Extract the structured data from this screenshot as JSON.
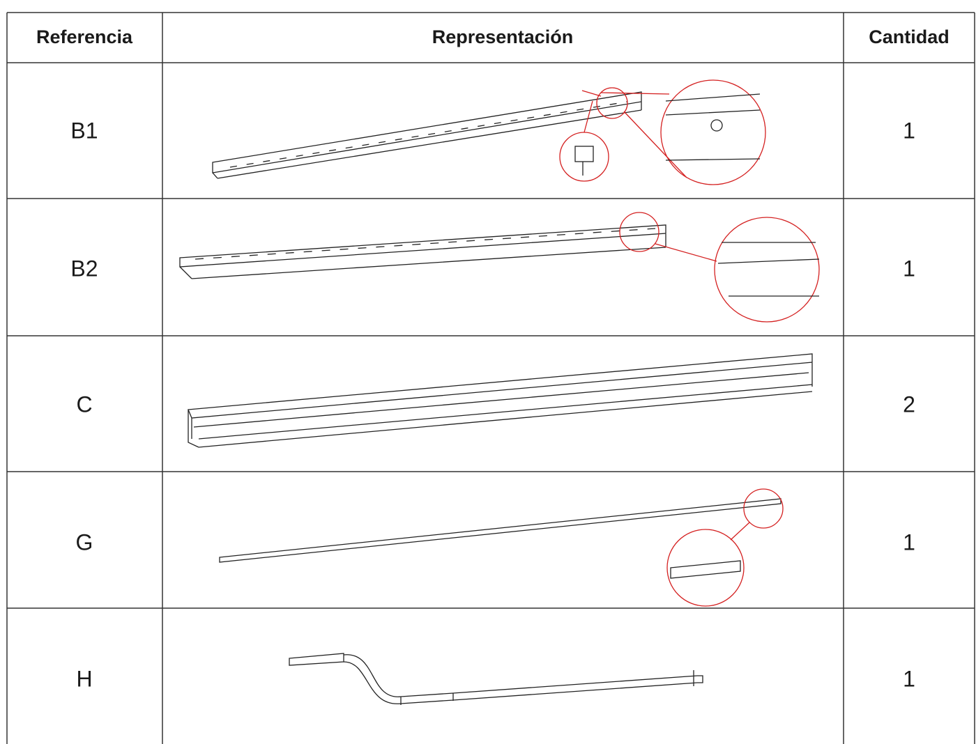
{
  "table": {
    "header": [
      "Referencia",
      "Representación",
      "Cantidad"
    ],
    "rows": [
      [
        "B1",
        "1"
      ],
      [
        "B2",
        "1"
      ],
      [
        "C",
        "2"
      ],
      [
        "G",
        "1"
      ],
      [
        "H",
        "1"
      ]
    ]
  }
}
